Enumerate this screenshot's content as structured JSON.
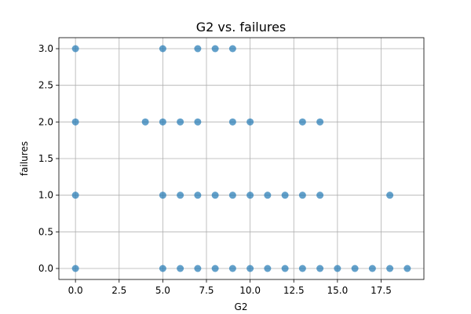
{
  "chart_data": {
    "type": "scatter",
    "title": "G2 vs. failures",
    "xlabel": "G2",
    "ylabel": "failures",
    "xlim": [
      -0.95,
      19.95
    ],
    "ylim": [
      -0.15,
      3.15
    ],
    "xticks": [
      0.0,
      2.5,
      5.0,
      7.5,
      10.0,
      12.5,
      15.0,
      17.5
    ],
    "xtick_labels": [
      "0.0",
      "2.5",
      "5.0",
      "7.5",
      "10.0",
      "12.5",
      "15.0",
      "17.5"
    ],
    "yticks": [
      0.0,
      0.5,
      1.0,
      1.5,
      2.0,
      2.5,
      3.0
    ],
    "ytick_labels": [
      "0.0",
      "0.5",
      "1.0",
      "1.5",
      "2.0",
      "2.5",
      "3.0"
    ],
    "grid": true,
    "legend": "none",
    "point_color": "#1f77b4",
    "point_alpha": 0.7,
    "points": [
      {
        "x": 0,
        "y": 3
      },
      {
        "x": 5,
        "y": 3
      },
      {
        "x": 7,
        "y": 3
      },
      {
        "x": 8,
        "y": 3
      },
      {
        "x": 9,
        "y": 3
      },
      {
        "x": 0,
        "y": 2
      },
      {
        "x": 4,
        "y": 2
      },
      {
        "x": 5,
        "y": 2
      },
      {
        "x": 6,
        "y": 2
      },
      {
        "x": 7,
        "y": 2
      },
      {
        "x": 9,
        "y": 2
      },
      {
        "x": 10,
        "y": 2
      },
      {
        "x": 13,
        "y": 2
      },
      {
        "x": 14,
        "y": 2
      },
      {
        "x": 0,
        "y": 1
      },
      {
        "x": 5,
        "y": 1
      },
      {
        "x": 6,
        "y": 1
      },
      {
        "x": 7,
        "y": 1
      },
      {
        "x": 8,
        "y": 1
      },
      {
        "x": 9,
        "y": 1
      },
      {
        "x": 10,
        "y": 1
      },
      {
        "x": 11,
        "y": 1
      },
      {
        "x": 12,
        "y": 1
      },
      {
        "x": 13,
        "y": 1
      },
      {
        "x": 14,
        "y": 1
      },
      {
        "x": 18,
        "y": 1
      },
      {
        "x": 0,
        "y": 0
      },
      {
        "x": 5,
        "y": 0
      },
      {
        "x": 6,
        "y": 0
      },
      {
        "x": 7,
        "y": 0
      },
      {
        "x": 8,
        "y": 0
      },
      {
        "x": 9,
        "y": 0
      },
      {
        "x": 10,
        "y": 0
      },
      {
        "x": 11,
        "y": 0
      },
      {
        "x": 12,
        "y": 0
      },
      {
        "x": 13,
        "y": 0
      },
      {
        "x": 14,
        "y": 0
      },
      {
        "x": 15,
        "y": 0
      },
      {
        "x": 16,
        "y": 0
      },
      {
        "x": 17,
        "y": 0
      },
      {
        "x": 18,
        "y": 0
      },
      {
        "x": 19,
        "y": 0
      }
    ]
  }
}
